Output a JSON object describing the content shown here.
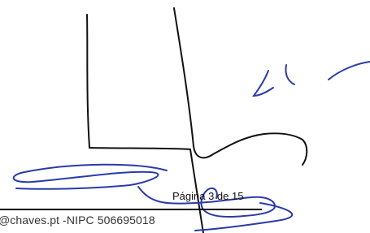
{
  "footer": {
    "page": "Página 3 de 15",
    "contact": "@chaves.pt -NIPC 506695018"
  }
}
